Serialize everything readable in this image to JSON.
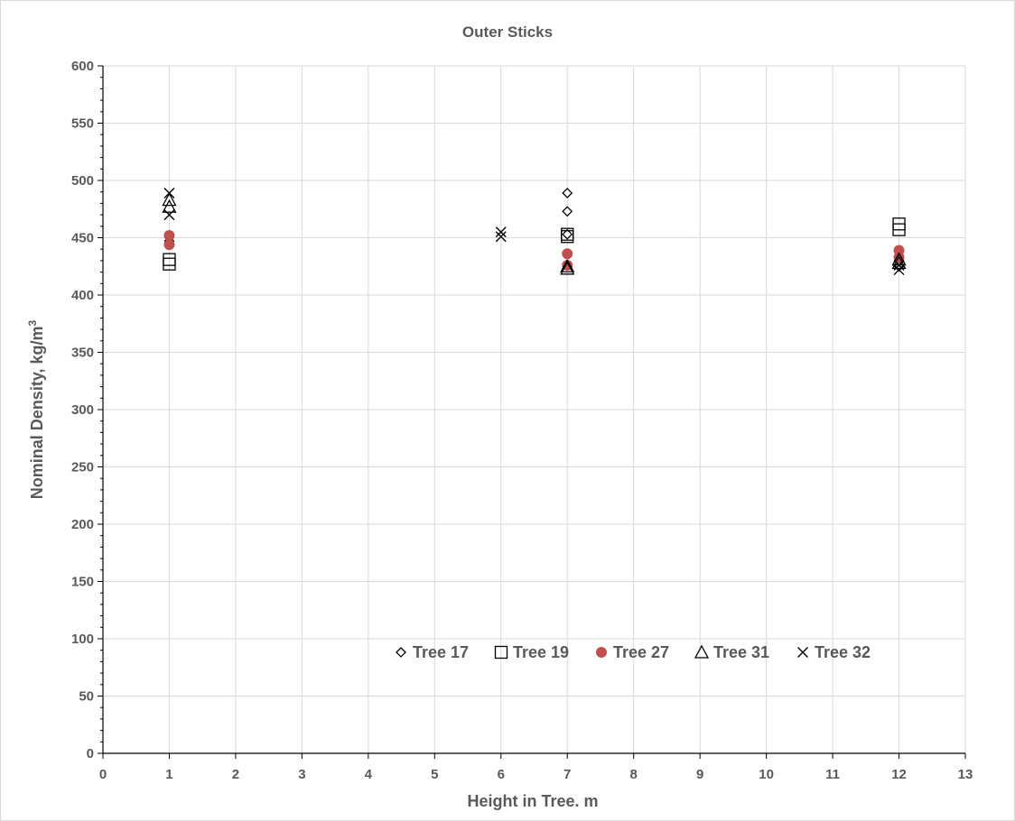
{
  "chart_data": {
    "type": "scatter",
    "title": "Outer Sticks",
    "xlabel": "Height in Tree. m",
    "ylabel_main": "Nominal Density, kg/m",
    "ylabel_sup": "3",
    "xlim": [
      0,
      13
    ],
    "ylim": [
      0,
      600
    ],
    "xticks": [
      "0",
      "1",
      "2",
      "3",
      "4",
      "5",
      "6",
      "7",
      "8",
      "9",
      "10",
      "11",
      "12",
      "13"
    ],
    "yticks": [
      "0",
      "50",
      "100",
      "150",
      "200",
      "250",
      "300",
      "350",
      "400",
      "450",
      "500",
      "550",
      "600"
    ],
    "grid": true,
    "legend_position": "bottom-center",
    "series": [
      {
        "name": "Tree 17",
        "marker": "diamond",
        "color": "#000000",
        "points": [
          [
            1,
            447
          ],
          [
            7,
            489
          ],
          [
            7,
            473
          ],
          [
            7,
            453
          ],
          [
            12,
            425
          ]
        ]
      },
      {
        "name": "Tree 19",
        "marker": "square",
        "color": "#000000",
        "points": [
          [
            1,
            431
          ],
          [
            1,
            427
          ],
          [
            7,
            453
          ],
          [
            7,
            451
          ],
          [
            12,
            462
          ],
          [
            12,
            457
          ]
        ]
      },
      {
        "name": "Tree 27",
        "marker": "circle",
        "color": "#c0504d",
        "points": [
          [
            1,
            452
          ],
          [
            1,
            444
          ],
          [
            7,
            436
          ],
          [
            7,
            426
          ],
          [
            12,
            439
          ],
          [
            12,
            433
          ]
        ]
      },
      {
        "name": "Tree 31",
        "marker": "triangle",
        "color": "#000000",
        "points": [
          [
            1,
            483
          ],
          [
            1,
            477
          ],
          [
            7,
            425
          ],
          [
            7,
            423
          ],
          [
            12,
            431
          ],
          [
            12,
            428
          ]
        ]
      },
      {
        "name": "Tree 32",
        "marker": "x",
        "color": "#000000",
        "points": [
          [
            1,
            489
          ],
          [
            1,
            470
          ],
          [
            6,
            455
          ],
          [
            6,
            451
          ],
          [
            12,
            426
          ],
          [
            12,
            422
          ]
        ]
      }
    ]
  }
}
